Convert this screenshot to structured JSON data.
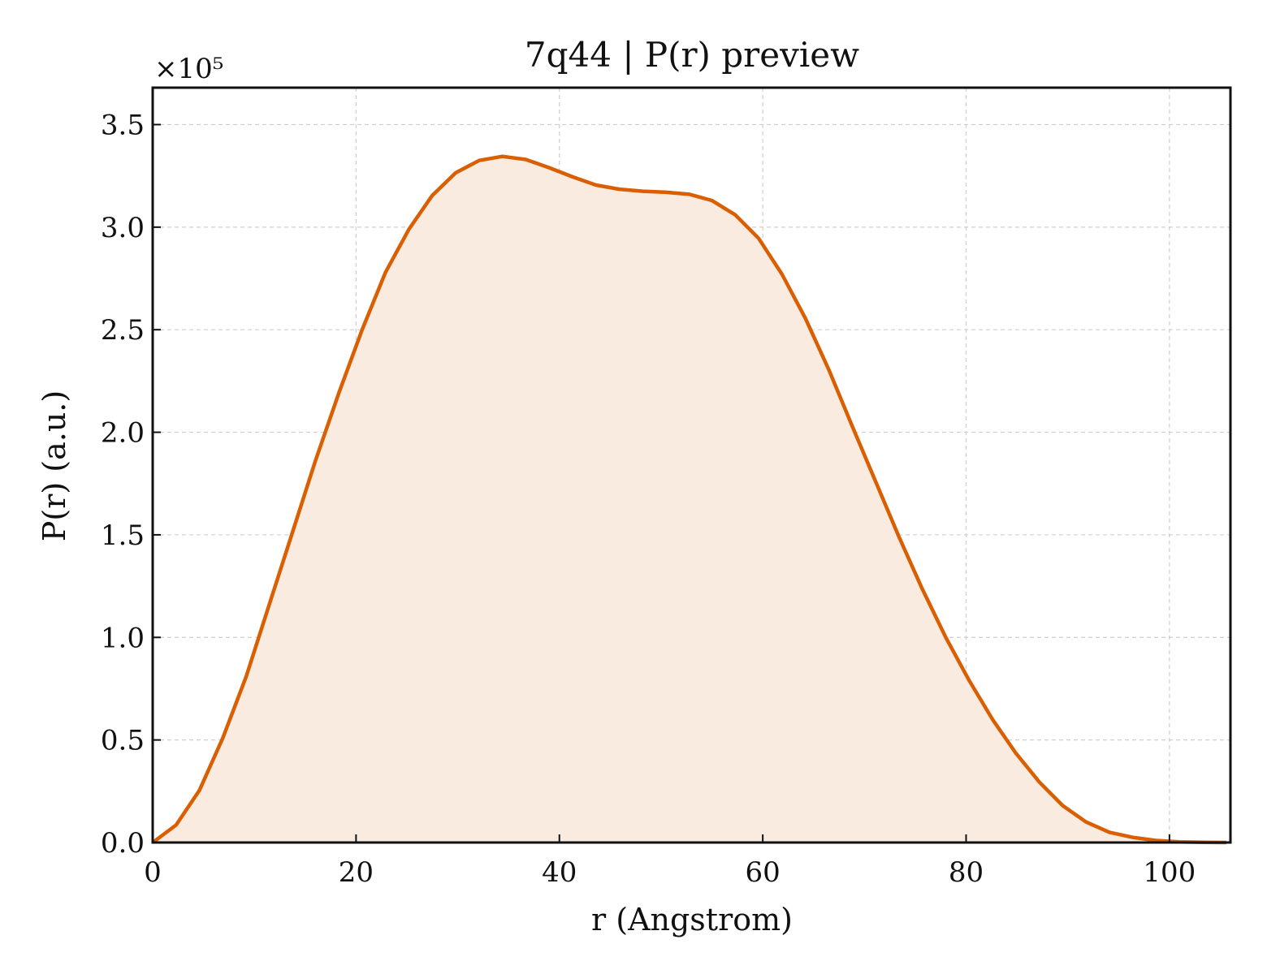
{
  "chart_data": {
    "type": "area",
    "title": "7q44 | P(r) preview",
    "xlabel": "r (Angstrom)",
    "ylabel": "P(r) (a.u.)",
    "y_offset_label": "×10⁵",
    "y_scale": 100000,
    "xlim": [
      0,
      106
    ],
    "ylim": [
      0,
      368000
    ],
    "xticks": [
      0,
      20,
      40,
      60,
      80,
      100
    ],
    "yticks": [
      0,
      50000,
      100000,
      150000,
      200000,
      250000,
      300000,
      350000
    ],
    "ytick_labels": [
      "0.0",
      "0.5",
      "1.0",
      "1.5",
      "2.0",
      "2.5",
      "3.0",
      "3.5"
    ],
    "grid": true,
    "colors": {
      "line": "#d95f02",
      "fill": "#f9ebe0"
    },
    "series": [
      {
        "x": [
          0,
          2.3,
          4.6,
          6.9,
          9.2,
          11.4,
          13.7,
          16.0,
          18.3,
          20.6,
          22.9,
          25.2,
          27.5,
          29.8,
          32.1,
          34.4,
          36.7,
          39.0,
          41.3,
          43.6,
          45.9,
          48.2,
          50.5,
          52.8,
          55.0,
          57.3,
          59.6,
          61.9,
          64.2,
          66.5,
          68.8,
          71.1,
          73.4,
          75.7,
          78.0,
          80.3,
          82.6,
          84.9,
          87.2,
          89.5,
          91.8,
          94.1,
          96.4,
          98.7,
          101.0,
          103.3,
          105.6
        ],
        "y": [
          0,
          8500,
          25500,
          51000,
          81000,
          115000,
          150500,
          186000,
          219000,
          250000,
          278000,
          299000,
          315500,
          326500,
          332500,
          334500,
          333000,
          329000,
          324500,
          320500,
          318500,
          317500,
          317000,
          316000,
          313000,
          306000,
          294500,
          277000,
          255500,
          230500,
          203000,
          176000,
          149000,
          123500,
          100000,
          79000,
          60000,
          43500,
          29500,
          18000,
          10000,
          5000,
          2500,
          1000,
          300,
          100,
          0
        ]
      }
    ]
  }
}
